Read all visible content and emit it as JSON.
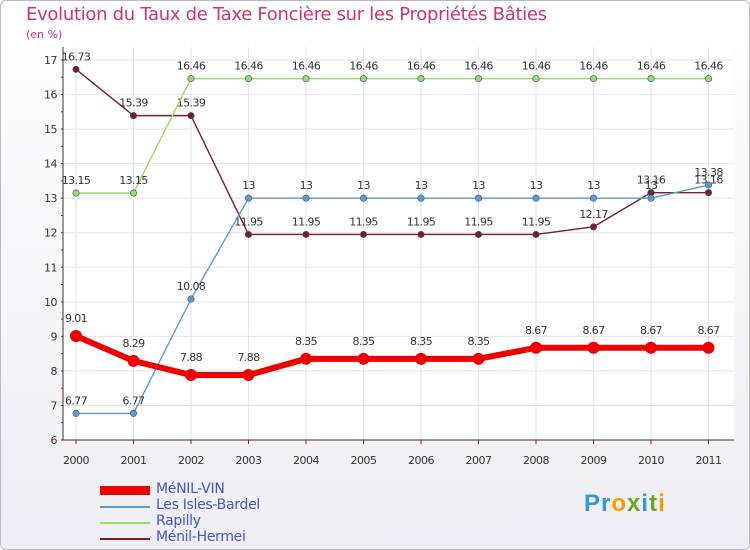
{
  "chart_data": {
    "type": "line",
    "title": "Evolution du Taux de Taxe Foncière sur les Propriétés Bâties",
    "subtitle": "(en %)",
    "x": [
      "2000",
      "2001",
      "2002",
      "2003",
      "2004",
      "2005",
      "2006",
      "2007",
      "2008",
      "2009",
      "2010",
      "2011"
    ],
    "yticks": [
      "6",
      "7",
      "8",
      "9",
      "10",
      "11",
      "12",
      "13",
      "14",
      "15",
      "16",
      "17"
    ],
    "ylim": [
      6,
      17
    ],
    "series": [
      {
        "name": "MéNIL-VIN",
        "color": "#ee0000",
        "values": [
          9.01,
          8.29,
          7.88,
          7.88,
          8.35,
          8.35,
          8.35,
          8.35,
          8.67,
          8.67,
          8.67,
          8.67
        ],
        "labels": [
          "9.01",
          "8.29",
          "7.88",
          "7.88",
          "8.35",
          "8.35",
          "8.35",
          "8.35",
          "8.67",
          "8.67",
          "8.67",
          "8.67"
        ]
      },
      {
        "name": "Les Isles-Bardel",
        "color": "#5b9bd5",
        "values": [
          6.77,
          6.77,
          10.08,
          13,
          13,
          13,
          13,
          13,
          13,
          13,
          13,
          13.38
        ],
        "labels": [
          "6.77",
          "6.77",
          "10.08",
          "13",
          "13",
          "13",
          "13",
          "13",
          "13",
          "13",
          "13",
          "13.38"
        ]
      },
      {
        "name": "Rapilly",
        "color": "#99dd66",
        "values": [
          13.15,
          13.15,
          16.46,
          16.46,
          16.46,
          16.46,
          16.46,
          16.46,
          16.46,
          16.46,
          16.46,
          16.46
        ],
        "labels": [
          "13.15",
          "13.15",
          "16.46",
          "16.46",
          "16.46",
          "16.46",
          "16.46",
          "16.46",
          "16.46",
          "16.46",
          "16.46",
          "16.46"
        ]
      },
      {
        "name": "Ménil-Hermei",
        "color": "#7a1e28",
        "values": [
          16.73,
          15.39,
          15.39,
          11.95,
          11.95,
          11.95,
          11.95,
          11.95,
          11.95,
          12.17,
          13.16,
          13.16
        ],
        "labels": [
          "16.73",
          "15.39",
          "15.39",
          "11.95",
          "11.95",
          "11.95",
          "11.95",
          "11.95",
          "11.95",
          "12.17",
          "13.16",
          "13.16"
        ]
      }
    ]
  },
  "legend": [
    {
      "label": "MéNIL-VIN",
      "color": "#ee0000"
    },
    {
      "label": "Les Isles-Bardel",
      "color": "#5b9bd5"
    },
    {
      "label": "Rapilly",
      "color": "#99dd66"
    },
    {
      "label": "Ménil-Hermei",
      "color": "#7a1e28"
    }
  ],
  "legend_text_color": "#4455cc",
  "brand": {
    "name": "Proxiti",
    "letters": [
      {
        "char": "P",
        "color": "#3399dd"
      },
      {
        "char": "r",
        "color": "#3399dd"
      },
      {
        "char": "o",
        "color": "#ff9900"
      },
      {
        "char": "x",
        "color": "#66aa22"
      },
      {
        "char": "i",
        "color": "#3399dd"
      },
      {
        "char": "t",
        "color": "#66aa22"
      },
      {
        "char": "i",
        "color": "#ff9900"
      }
    ]
  }
}
